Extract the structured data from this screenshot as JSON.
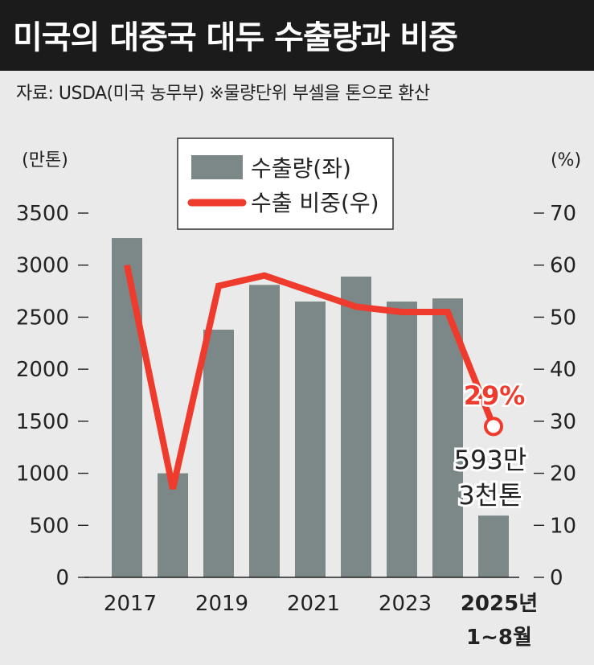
{
  "title": "미국의 대중국 대두 수출량과 비중",
  "source": "자료: USDA(미국 농무부)  ※물량단위 부셀을 톤으로 환산",
  "colors": {
    "bar": "#7c8788",
    "line": "#ee3b2d",
    "title_bg": "#1b1b1b",
    "background": "#eaeaea"
  },
  "chart_data": {
    "type": "bar",
    "categories": [
      "2017",
      "2018",
      "2019",
      "2020",
      "2021",
      "2022",
      "2023",
      "2024",
      "2025년 1~8월"
    ],
    "x_tick_labels": [
      "2017",
      "2019",
      "2021",
      "2023",
      "2025년",
      "1~8월"
    ],
    "series": [
      {
        "name": "수출량(좌)",
        "type": "bar",
        "axis": "left",
        "values": [
          3260,
          1000,
          2380,
          2810,
          2650,
          2890,
          2650,
          2680,
          593.3
        ]
      },
      {
        "name": "수출 비중(우)",
        "type": "line",
        "axis": "right",
        "values": [
          60,
          17,
          56,
          58,
          55,
          52,
          51,
          51,
          29
        ]
      }
    ],
    "y_left": {
      "unit": "(만톤)",
      "range": [
        0,
        3500
      ],
      "ticks": [
        0,
        500,
        1000,
        1500,
        2000,
        2500,
        3000,
        3500
      ]
    },
    "y_right": {
      "unit": "(%)",
      "range": [
        0,
        70
      ],
      "ticks": [
        0,
        10,
        20,
        30,
        40,
        50,
        60,
        70
      ]
    },
    "legend": {
      "placement": "top-center",
      "items": [
        "수출량(좌)",
        "수출 비중(우)"
      ]
    },
    "annotations": {
      "last_pct": "29%",
      "last_value_line1": "593만",
      "last_value_line2": "3천톤"
    },
    "grid": false
  }
}
